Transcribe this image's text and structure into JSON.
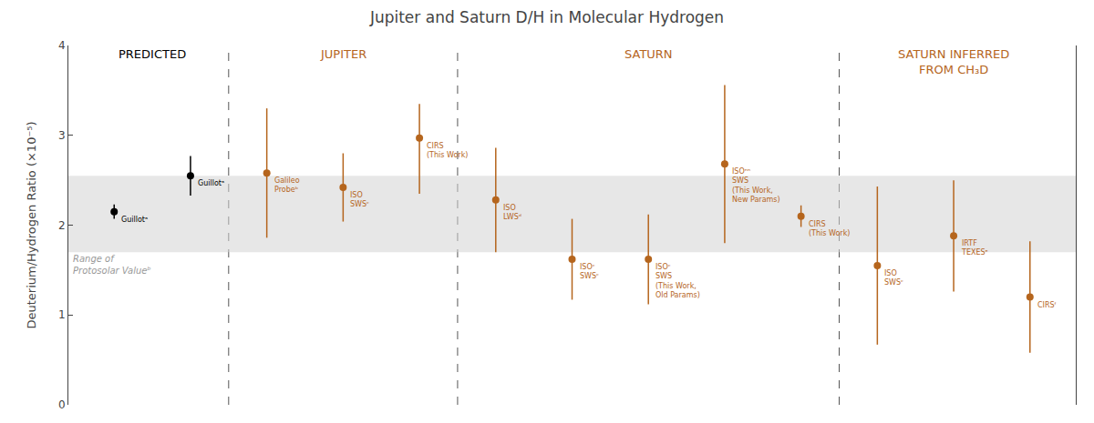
{
  "chart_data": {
    "type": "scatter",
    "title": "Jupiter and Saturn D/H in Molecular Hydrogen",
    "ylabel": "Deuterium/Hydrogen Ratio (×10⁻⁵)",
    "ylim": [
      0,
      4.0
    ],
    "yticks": [
      0,
      1,
      2,
      3,
      4
    ],
    "grid": false,
    "tick_labels": "y",
    "band": {
      "range": [
        1.7,
        2.55
      ],
      "label": "Range of\nProtosolar Valueᵇ",
      "color": "#d3d3d3"
    },
    "series": [
      {
        "name": "PREDICTED",
        "color": "black",
        "categories": [
          "Guillotᵃ",
          "Guillotᵃ"
        ],
        "values": [
          2.15,
          2.55
        ],
        "error_lo": [
          0.08,
          0.22
        ],
        "error_hi": [
          0.08,
          0.22
        ]
      },
      {
        "name": "JUPITER",
        "color": "#b5651d",
        "categories": [
          "Galileo\nProbeᵇ",
          "ISO\nSWSᶜ",
          "CIRS\n(This Work)"
        ],
        "values": [
          2.58,
          2.42,
          2.97
        ],
        "error_lo": [
          0.72,
          0.38,
          0.62
        ],
        "error_hi": [
          0.72,
          0.38,
          0.38
        ]
      },
      {
        "name": "SATURN",
        "color": "#b5651d",
        "categories": [
          "ISO\nLWSᵈ",
          "ISOᶜ\nSWSᶜ",
          "ISOᶜ\nSWS\n(This Work,\nOld Params)",
          "ISOⁿⁿ\nSWS\n(This Work,\nNew Params)",
          "CIRS\n(This Work)"
        ],
        "values": [
          2.28,
          1.62,
          1.62,
          2.68,
          2.1
        ],
        "error_lo": [
          0.58,
          0.45,
          0.5,
          0.88,
          0.12
        ],
        "error_hi": [
          0.58,
          0.45,
          0.5,
          0.88,
          0.12
        ]
      },
      {
        "name": "SATURN INFERRED\nFROM CH₃D",
        "color": "#b5651d",
        "categories": [
          "ISO\nSWSᶜ",
          "IRTF\nTEXESᵉ",
          "CIRSᶠ"
        ],
        "values": [
          1.55,
          1.88,
          1.2
        ],
        "error_lo": [
          0.88,
          0.62,
          0.62
        ],
        "error_hi": [
          0.88,
          0.62,
          0.62
        ]
      }
    ]
  }
}
